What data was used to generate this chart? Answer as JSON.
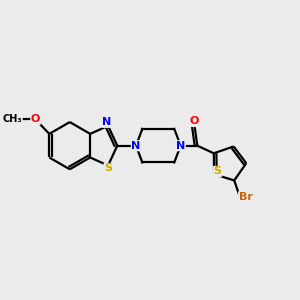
{
  "background_color": "#ebebeb",
  "line_color": "#000000",
  "bond_lw": 1.6,
  "figsize": [
    3.0,
    3.0
  ],
  "dpi": 100,
  "atom_colors": {
    "N": "#0000ff",
    "O": "#ff0000",
    "S": "#ccaa00",
    "Br": "#cc6600",
    "C": "#000000"
  },
  "xlim": [
    0,
    10
  ],
  "ylim": [
    0,
    10
  ]
}
